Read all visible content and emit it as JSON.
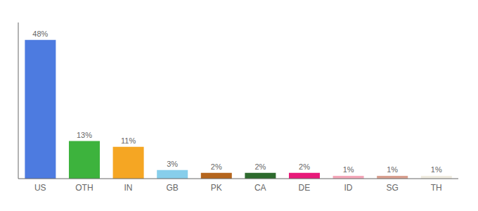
{
  "chart_data": {
    "type": "bar",
    "categories": [
      "US",
      "OTH",
      "IN",
      "GB",
      "PK",
      "CA",
      "DE",
      "ID",
      "SG",
      "TH"
    ],
    "values": [
      48,
      13,
      11,
      3,
      2,
      2,
      2,
      1,
      1,
      1
    ],
    "value_labels": [
      "48%",
      "13%",
      "11%",
      "3%",
      "2%",
      "2%",
      "2%",
      "1%",
      "1%",
      "1%"
    ],
    "colors": [
      "#4d7be0",
      "#3db33d",
      "#f5a623",
      "#87ceeb",
      "#b5651d",
      "#2d6a2d",
      "#e8197a",
      "#f4a7b9",
      "#d9a090",
      "#f0ece0"
    ],
    "ylim": [
      0,
      54
    ],
    "data_labels": true,
    "tick_labels": "x",
    "grid": false
  }
}
